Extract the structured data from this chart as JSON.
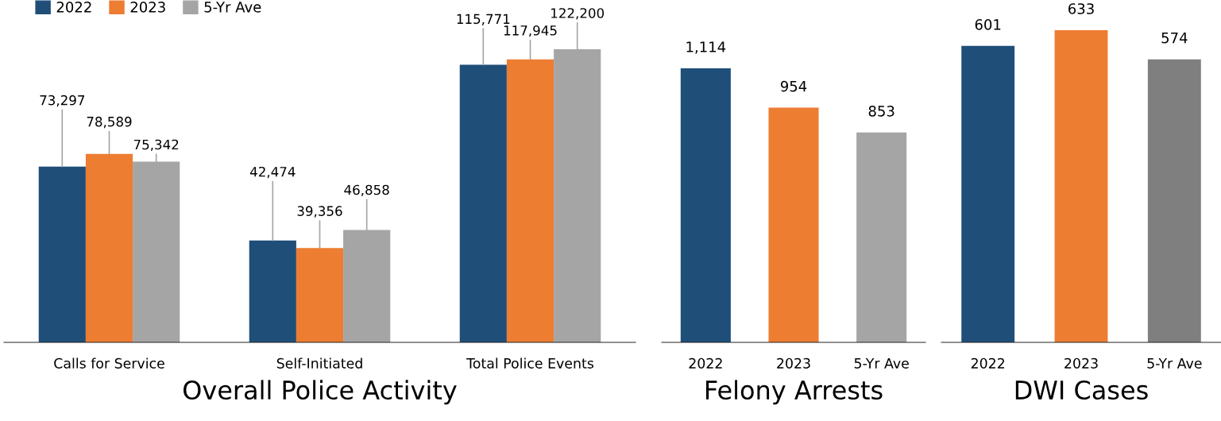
{
  "chart_data": [
    {
      "type": "bar",
      "title": "Overall Police Activity",
      "categories": [
        "Calls for Service",
        "Self-Initiated",
        "Total Police Events"
      ],
      "series": [
        {
          "name": "2022",
          "color": "#1f4e79",
          "values": [
            73297,
            42474,
            115771
          ],
          "value_labels": [
            "73,297",
            "42,474",
            "115,771"
          ]
        },
        {
          "name": "2023",
          "color": "#ed7d31",
          "values": [
            78589,
            39356,
            117945
          ],
          "value_labels": [
            "78,589",
            "39,356",
            "117,945"
          ]
        },
        {
          "name": "5-Yr Ave",
          "color": "#a5a5a5",
          "values": [
            75342,
            46858,
            122200
          ],
          "value_labels": [
            "75,342",
            "46,858",
            "122,200"
          ]
        }
      ],
      "legend": "top left",
      "grid": false
    },
    {
      "type": "bar",
      "title": "Felony Arrests",
      "categories": [
        "2022",
        "2023",
        "5-Yr Ave"
      ],
      "values": [
        1114,
        954,
        853
      ],
      "value_labels": [
        "1,114",
        "954",
        "853"
      ],
      "colors": [
        "#1f4e79",
        "#ed7d31",
        "#a5a5a5"
      ],
      "grid": false
    },
    {
      "type": "bar",
      "title": "DWI Cases",
      "categories": [
        "2022",
        "2023",
        "5-Yr Ave"
      ],
      "values": [
        601,
        633,
        574
      ],
      "value_labels": [
        "601",
        "633",
        "574"
      ],
      "colors": [
        "#1f4e79",
        "#ed7d31",
        "#7f7f7f"
      ],
      "grid": false
    }
  ]
}
